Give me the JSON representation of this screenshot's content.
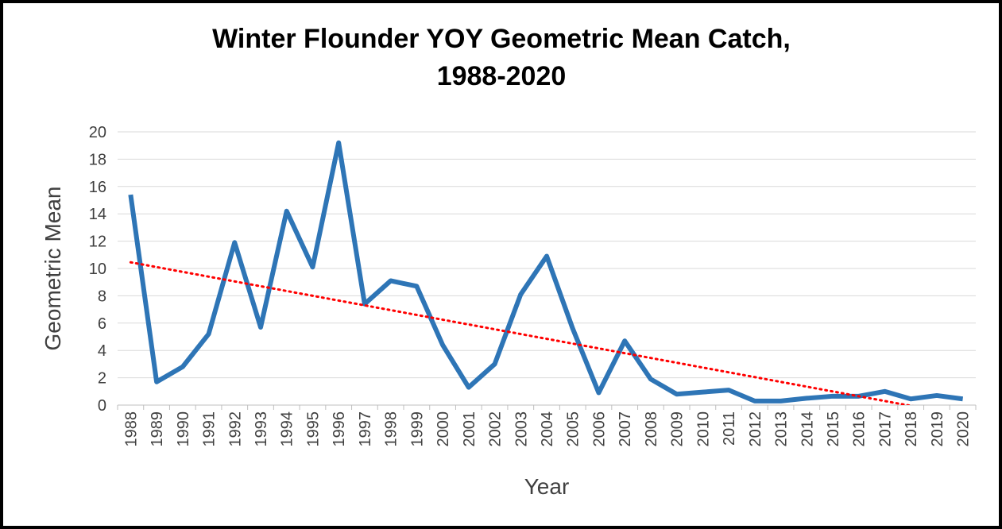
{
  "chart_data": {
    "type": "line",
    "title": [
      "Winter Flounder YOY Geometric Mean Catch,",
      "1988-2020"
    ],
    "ylabel": "Geometric Mean",
    "xlabel": "Year",
    "categories": [
      "1988",
      "1989",
      "1990",
      "1991",
      "1992",
      "1993",
      "1994",
      "1995",
      "1996",
      "1997",
      "1998",
      "1999",
      "2000",
      "2001",
      "2002",
      "2003",
      "2004",
      "2005",
      "2006",
      "2007",
      "2008",
      "2009",
      "2010",
      "2011",
      "2012",
      "2013",
      "2014",
      "2015",
      "2016",
      "2017",
      "2018",
      "2019",
      "2020"
    ],
    "series": [
      {
        "color": "#2e75b6",
        "values": [
          15.4,
          1.7,
          2.8,
          5.2,
          11.9,
          5.7,
          14.2,
          10.1,
          19.2,
          7.4,
          9.1,
          8.7,
          4.4,
          1.3,
          3.0,
          8.1,
          10.9,
          5.6,
          0.9,
          4.7,
          1.9,
          0.8,
          0.95,
          1.1,
          0.3,
          0.3,
          0.5,
          0.65,
          0.65,
          1.0,
          0.45,
          0.7,
          0.45
        ]
      }
    ],
    "trendline": {
      "type": "linear",
      "color": "#ff0000"
    },
    "ylim": [
      0,
      20
    ],
    "yticks": [
      0,
      2,
      4,
      6,
      8,
      10,
      12,
      14,
      16,
      18,
      20
    ],
    "grid": true
  }
}
